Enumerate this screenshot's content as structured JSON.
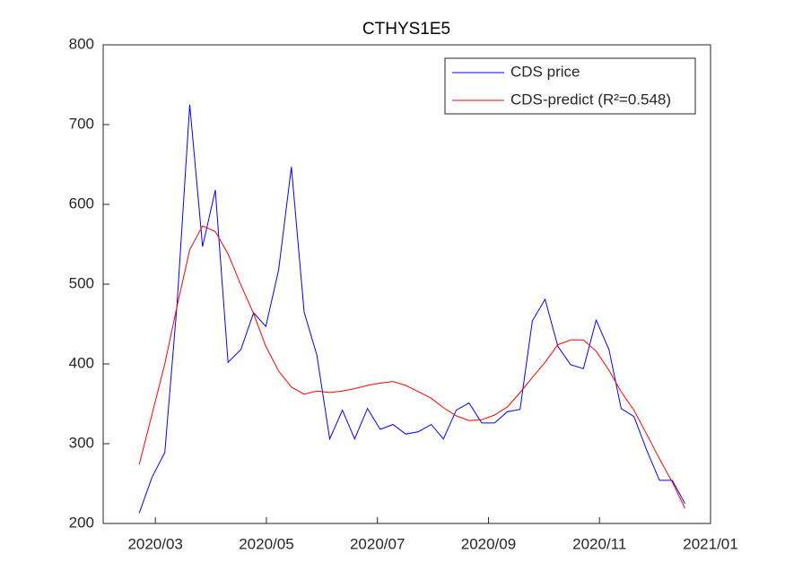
{
  "chart_data": {
    "type": "line",
    "title": "CTHYS1E5",
    "x": [
      2.71,
      2.94,
      3.17,
      3.39,
      3.62,
      3.85,
      4.08,
      4.31,
      4.54,
      4.77,
      4.99,
      5.22,
      5.45,
      5.68,
      5.91,
      6.14,
      6.37,
      6.59,
      6.82,
      7.05,
      7.28,
      7.51,
      7.74,
      7.97,
      8.19,
      8.42,
      8.65,
      8.88,
      9.11,
      9.34,
      9.57,
      9.79,
      10.02,
      10.25,
      10.48,
      10.71,
      10.94,
      11.17,
      11.39,
      11.62,
      11.85,
      12.08,
      12.31,
      12.54
    ],
    "series": [
      {
        "name": "CDS price",
        "color": "#0000ff",
        "values": [
          213,
          258,
          289,
          474,
          725,
          547,
          618,
          402,
          418,
          464,
          447,
          518,
          647,
          465,
          411,
          306,
          342,
          306,
          344,
          318,
          324,
          312,
          315,
          324,
          306,
          342,
          351,
          326,
          326,
          340,
          343,
          454,
          481,
          422,
          399,
          394,
          455,
          418,
          344,
          334,
          292,
          254,
          254,
          225
        ]
      },
      {
        "name": "CDS-predict (R²=0.548)",
        "color": "#ff0000",
        "values": [
          274,
          337,
          400,
          472,
          543,
          573,
          566,
          538,
          499,
          463,
          422,
          391,
          371,
          362,
          366,
          364,
          366,
          369,
          373,
          376,
          378,
          373,
          365,
          357,
          345,
          335,
          329,
          330,
          336,
          346,
          364,
          383,
          402,
          424,
          430,
          430,
          416,
          392,
          365,
          342,
          312,
          281,
          252,
          219
        ]
      }
    ],
    "xlim": [
      2.06,
      13
    ],
    "xticks": [
      {
        "value": 3,
        "label": "2020/03"
      },
      {
        "value": 5,
        "label": "2020/05"
      },
      {
        "value": 7,
        "label": "2020/07"
      },
      {
        "value": 9,
        "label": "2020/09"
      },
      {
        "value": 11,
        "label": "2020/11"
      },
      {
        "value": 13,
        "label": "2021/01"
      }
    ],
    "ylim": [
      200,
      800
    ],
    "yticks": [
      200,
      300,
      400,
      500,
      600,
      700,
      800
    ],
    "grid": false,
    "legend": "northeast"
  }
}
